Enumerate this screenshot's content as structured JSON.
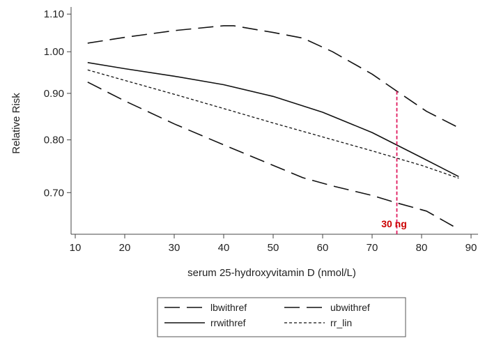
{
  "chart_data": {
    "type": "line",
    "xlabel": "serum 25-hydroxyvitamin D (nmol/L)",
    "ylabel": "Relative Risk",
    "xlim": [
      10,
      90
    ],
    "ylim": [
      0.63,
      1.12
    ],
    "y_scale": "log",
    "x_ticks": [
      10,
      20,
      30,
      40,
      50,
      60,
      70,
      80,
      90
    ],
    "y_ticks": [
      0.7,
      0.8,
      0.9,
      1.0,
      1.1
    ],
    "y_tick_labels": [
      "0.70",
      "0.80",
      "0.90",
      "1.00",
      "1.10"
    ],
    "grid": false,
    "legend_position": "bottom",
    "series": [
      {
        "name": "lbwithref",
        "style": "long-dash",
        "x": [
          12.5,
          20,
          30,
          40,
          50,
          56,
          62,
          70,
          75,
          81,
          87.5
        ],
        "y": [
          0.926,
          0.883,
          0.833,
          0.79,
          0.75,
          0.727,
          0.712,
          0.695,
          0.682,
          0.668,
          0.638
        ]
      },
      {
        "name": "ubwithref",
        "style": "long-dash",
        "x": [
          12.5,
          20,
          30,
          40,
          42,
          50,
          56,
          62,
          70,
          75,
          81,
          87.5
        ],
        "y": [
          1.022,
          1.037,
          1.055,
          1.068,
          1.068,
          1.05,
          1.035,
          1.0,
          0.945,
          0.905,
          0.86,
          0.825
        ]
      },
      {
        "name": "rrwithref",
        "style": "solid",
        "x": [
          12.5,
          20,
          30,
          40,
          50,
          60,
          70,
          80,
          87.5
        ],
        "y": [
          0.973,
          0.958,
          0.94,
          0.92,
          0.893,
          0.858,
          0.815,
          0.765,
          0.729
        ]
      },
      {
        "name": "rr_lin",
        "style": "short-dash",
        "x": [
          12.5,
          20,
          30,
          40,
          50,
          60,
          70,
          80,
          87.5
        ],
        "y": [
          0.955,
          0.93,
          0.898,
          0.866,
          0.835,
          0.806,
          0.778,
          0.75,
          0.726
        ]
      }
    ],
    "annotations": [
      {
        "text": "30 ng",
        "x": 75,
        "y_top": 0.905,
        "y_bottom": 0.63,
        "color": "#e0195e",
        "style": "dashed-vertical"
      }
    ],
    "colors": {
      "lines": "#111111",
      "axis": "#444444",
      "annotation": "#e0195e",
      "annotation_text": "#cc0000"
    }
  }
}
